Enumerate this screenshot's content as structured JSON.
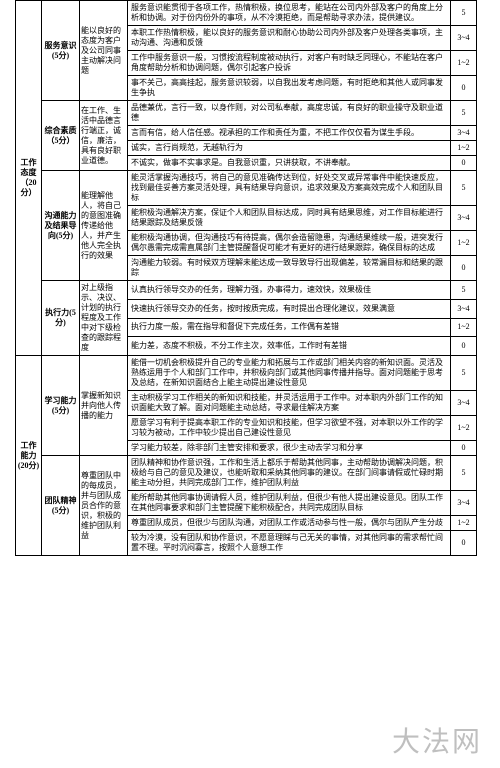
{
  "watermark": "大法网",
  "cat1": {
    "label": "工作态度（20分）",
    "subs": [
      {
        "label": "服务意识(5分)",
        "criteria": "能以良好的态度为客户及公司同事主动解决问题",
        "rows": [
          {
            "desc": "服务意识能贯彻于各项工作，热情积极，换位思考，能站在公司内外部及客户的角度上分析和协调。对于份内份外的事项，从不冷漠拒绝，而是帮助寻求办法，提供建议。",
            "score": "5"
          },
          {
            "desc": "本职工作热情积极，能以良好的服务意识和耐心协助公司内外部及客户处理各类事项，主动沟通、沟通和反馈",
            "score": "3~4"
          },
          {
            "desc": "工作中服务意识一般，习惯按流程制度被动执行，对客户有时缺乏同理心，不能站在客户角度帮助分析和协调问题，偶尔引起客户投诉",
            "score": "1~2"
          },
          {
            "desc": "事不关己，高高挂起，服务意识较弱，以自我出发考虑问题，有时拒绝和其他人或同事发生争执",
            "score": "0"
          }
        ]
      },
      {
        "label": "综合素质（5分）",
        "criteria": "在工作、生活中品德言行端正，诚信，廉洁，具有良好职业道德。",
        "rows": [
          {
            "desc": "品德兼优，言行一致，以身作则，对公司私奉献，高度忠诚，有良好的职业操守及职业道德",
            "score": "5"
          },
          {
            "desc": "言而有信，给人信任感。视承担的工作和责任为重，不把工作仅仅看为谋生手段。",
            "score": "3~4"
          },
          {
            "desc": "诚实，言行尚规范，无越轨行为",
            "score": "1~2"
          },
          {
            "desc": "不诚实，做事不实事求是。自我意识重，只讲获取，不讲奉献。",
            "score": "0"
          }
        ]
      },
      {
        "label": "沟通能力及结果导向(5分)",
        "criteria": "能理解他人，将自己的意图准确传递给他人，并产生他人完全执行的效果",
        "rows": [
          {
            "desc": "能灵活掌握沟通技巧，将自己的意见准确传达到位，好处交叉或异常事件中能快速反应，找到最佳妥善方案灵活处理，具有结果导向意识，追求效果及方案高效完成个人和团队目标",
            "score": "5"
          },
          {
            "desc": "能积极沟通解决方案，保证个人和团队目标达成，同时具有结果思维，对工作目标能进行结果跟踪及结果反馈",
            "score": "3~4"
          },
          {
            "desc": "能积极沟通协调，但沟通技巧有待提高，偶尔会造留隐患，沟通结果维续一般，进突发行偶尔愚需完成需直属部门主管提醒督促可能才有更好的进行结果跟踪，确保目标的达成",
            "score": "1~2"
          },
          {
            "desc": "沟通能力较弱。有时候双方理解未能达成一致导致导行出现偏差，较常漏目标和结果的跟踪",
            "score": "0"
          }
        ]
      },
      {
        "label": "执行力(5分)",
        "criteria": "对上级指示、决议、计划的执行程度及工作中对下级检查的跟踪程度",
        "rows": [
          {
            "desc": "认真执行领导交办的任务，理解力强，办事得力，速效快，效果极佳",
            "score": "5"
          },
          {
            "desc": "快速执行领导交办的任务，按时按质完成，有时提出合理化建议，效果满意",
            "score": "3~4"
          },
          {
            "desc": "执行力度一般，需在指导和督促下完成任务，工作偶有差错",
            "score": "1~2"
          },
          {
            "desc": "能力差，态度不积极，不分工作主次，效率低，工作时有差错",
            "score": "0"
          }
        ]
      }
    ]
  },
  "cat2": {
    "label": "工作能力(20分)",
    "subs": [
      {
        "label": "学习能力(5分)",
        "criteria": "掌握新知识并向他人传播的能力",
        "rows": [
          {
            "desc": "能借一切机会积极提升自己的专业能力和拓展与工作或部门相关内容的新知识面。灵活及熟练运用于个人和部门工作中，并积极向部门或其他同事传播并指导。面对问题能于思考及总结，在新知识面结合上能主动提出建设性意见",
            "score": "5"
          },
          {
            "desc": "主动积极学习工作相关的新知识和技能，并灵活运用于工作中。对本职内外部门工作的知识面能大致了解。面对问题能主动总结，寻求最佳解决方案",
            "score": "3~4"
          },
          {
            "desc": "愿意学习有利于提高本职工作的专业知识和技能，但学习欲望不强，对本职以外工作的学习较为被动，工作中较少提出自己建设性意见",
            "score": "1~2"
          },
          {
            "desc": "学习能力较差，除非部门主管安排和要求，很少主动去学习和分享",
            "score": "0"
          }
        ]
      },
      {
        "label": "团队精神(5分)",
        "criteria": "尊重团队中的每成员，并与团队成员合作的意识，积极的维护团队利益",
        "rows": [
          {
            "desc": "团队精神和协作意识强，工作和生活上都乐于帮助其他同事，主动帮助协调解决问题，积极给与自己的意见及建议，也能听取和采纳其他同事的建议。在部门间事请假或忙碌时期能主动分担，共同完成部门工作，维护团队利益",
            "score": "5"
          },
          {
            "desc": "能所帮助其他同事协调请假人员，维护团队利益，但很少有他人提出建设意见。团队工作在其他同事要求和部门主管提醒下能积极配合，共同完成团队目标",
            "score": "3~4"
          },
          {
            "desc": "尊重团队成员，但很少与团队沟通，对团队工作或活动参与性一般，偶尔与团队产生分歧",
            "score": "1~2"
          },
          {
            "desc": "较为冷漠，没有团队和协作意识，不愿意理睬与己无关的事情，对其他同事的需求帮忙间置不理。平时沉闷寡言，按照个人意想工作",
            "score": "0"
          }
        ]
      }
    ]
  }
}
